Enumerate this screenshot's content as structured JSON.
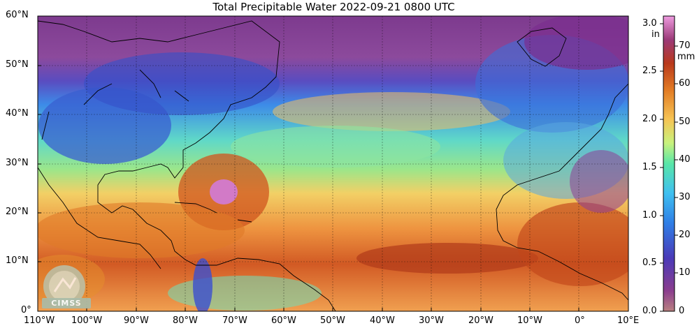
{
  "title": "Total Precipitable Water  2022-09-21 0800 UTC",
  "map": {
    "lat_labels": [
      "60°N",
      "50°N",
      "40°N",
      "30°N",
      "20°N",
      "10°N",
      "0°"
    ],
    "lon_labels": [
      "110°W",
      "100°W",
      "90°W",
      "80°W",
      "70°W",
      "60°W",
      "50°W",
      "40°W",
      "30°W",
      "20°W",
      "10°W",
      "0°",
      "10°E"
    ]
  },
  "colorbar": {
    "in_unit": "in",
    "mm_unit": "mm",
    "in_ticks": [
      "3.0",
      "2.5",
      "2.0",
      "1.5",
      "1.0",
      "0.5",
      "0.0"
    ],
    "mm_ticks": [
      "70",
      "60",
      "50",
      "40",
      "30",
      "20",
      "10",
      "0"
    ],
    "colors": [
      "#b57a7a",
      "#7b2a8c",
      "#3b3fbf",
      "#3fa9f0",
      "#4fe0b0",
      "#c8f07a",
      "#f8c050",
      "#e07820",
      "#c04018",
      "#a03a70",
      "#e090d8"
    ]
  },
  "logo": {
    "text": "CIMSS"
  }
}
